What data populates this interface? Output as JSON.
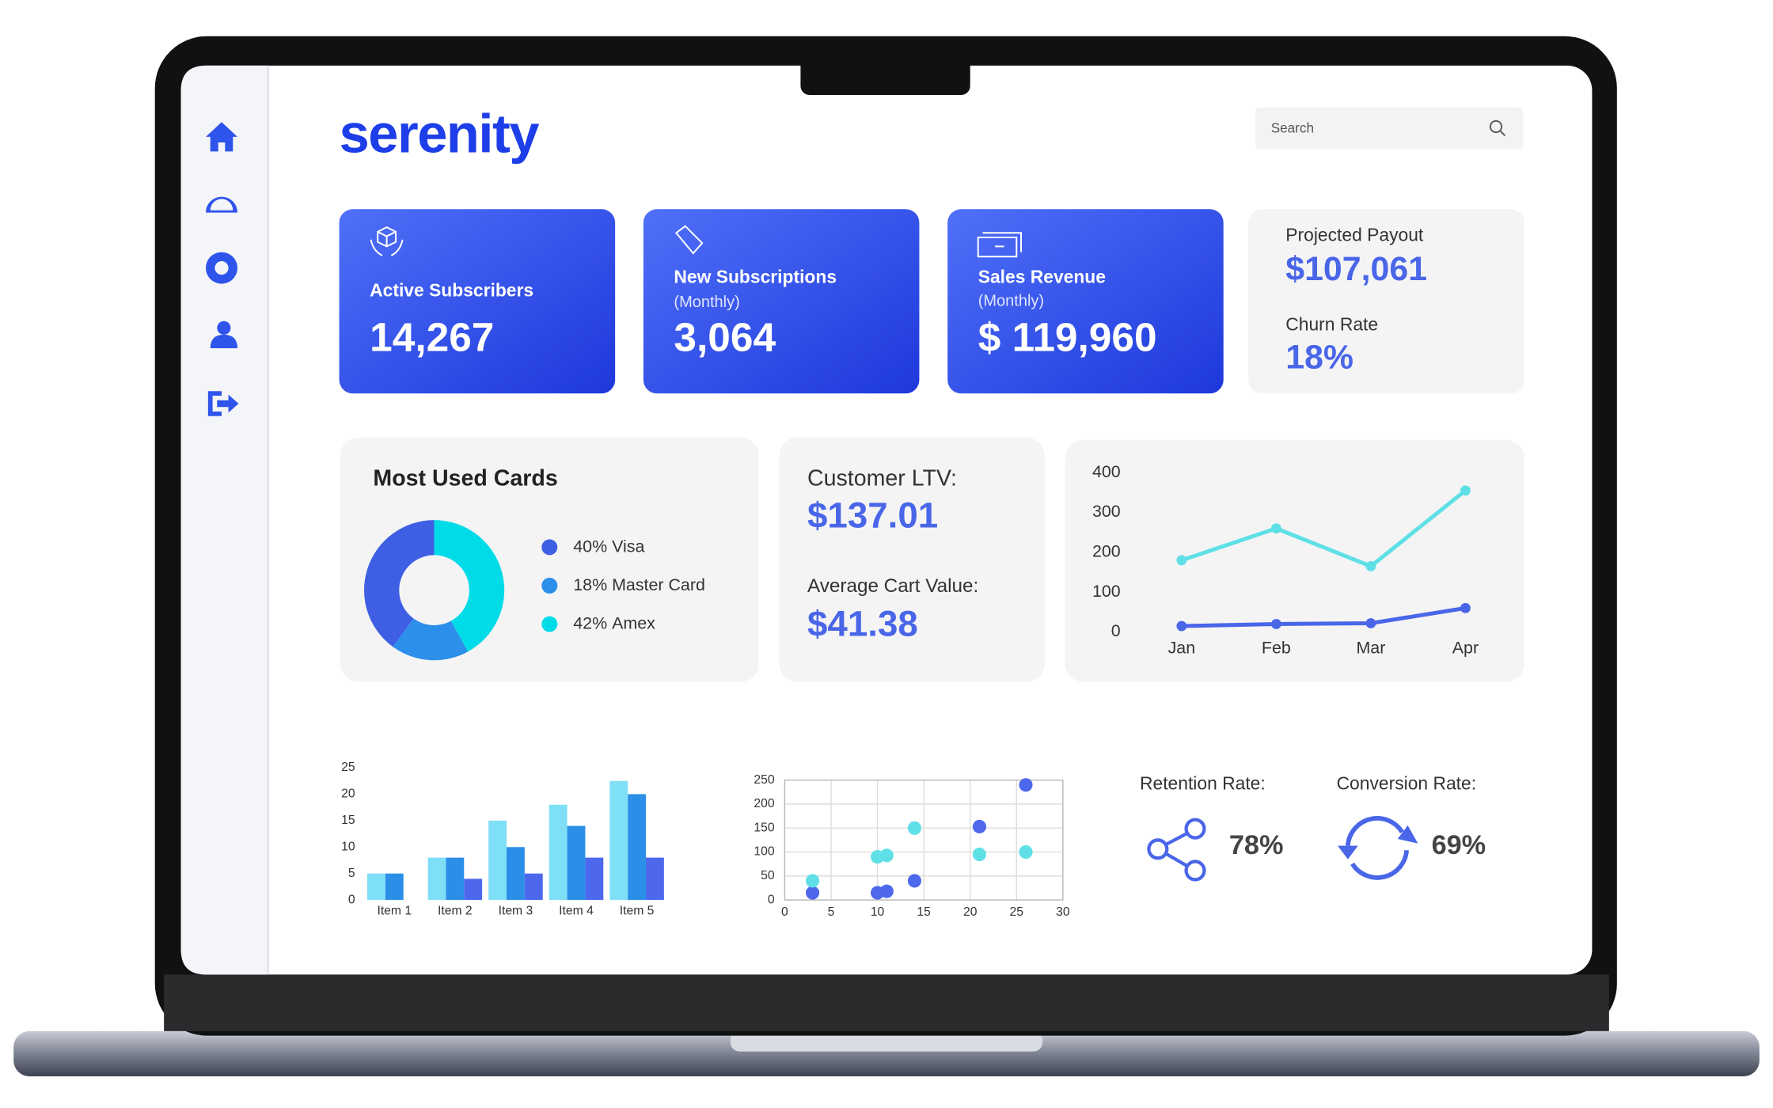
{
  "logo": "serenity",
  "search_placeholder": "Search",
  "kpis": [
    {
      "label": "Active Subscribers",
      "value": "14,267"
    },
    {
      "label": "New Subscriptions",
      "sublabel": "(Monthly)",
      "value": "3,064"
    },
    {
      "label": "Sales Revenue",
      "sublabel": "(Monthly)",
      "value": "$ 119,960"
    }
  ],
  "payout": {
    "label": "Projected Payout",
    "value": "$107,061"
  },
  "churn": {
    "label": "Churn Rate",
    "value": "18%"
  },
  "ltv": {
    "label": "Customer LTV:",
    "value": "$137.01"
  },
  "cart": {
    "label": "Average Cart Value:",
    "value": "$41.38"
  },
  "retention": {
    "label": "Retention Rate:",
    "value": "78%"
  },
  "conversion": {
    "label": "Conversion Rate:",
    "value": "69%"
  },
  "chart_data": [
    {
      "type": "pie",
      "title": "Most Used Cards",
      "categories": [
        "Visa",
        "Master Card",
        "Amex"
      ],
      "values": [
        40,
        18,
        42
      ],
      "value_labels": [
        "40%",
        "18%",
        "42%"
      ],
      "colors": [
        "#3e5fe3",
        "#2c8fe9",
        "#00dbe8"
      ],
      "legend": "right"
    },
    {
      "type": "line",
      "categories": [
        "Jan",
        "Feb",
        "Mar",
        "Apr"
      ],
      "series": [
        {
          "color": "#5fe0e6",
          "values": [
            180,
            260,
            165,
            355
          ]
        },
        {
          "color": "#4a66e8",
          "values": [
            15,
            20,
            22,
            60
          ]
        }
      ],
      "ylim": [
        0,
        400
      ],
      "yticks": [
        0,
        100,
        200,
        300,
        400
      ],
      "grid": false
    },
    {
      "type": "bar",
      "categories": [
        "Item 1",
        "Item 2",
        "Item 3",
        "Item 4",
        "Item 5"
      ],
      "series": [
        {
          "color": "#7fdff7",
          "values": [
            5,
            8,
            15,
            18,
            22.5
          ]
        },
        {
          "color": "#2b8fe8",
          "values": [
            5,
            8,
            10,
            14,
            20
          ]
        },
        {
          "color": "#4d68ec",
          "values": [
            null,
            4,
            5,
            8,
            8
          ]
        }
      ],
      "ylim": [
        0,
        25
      ],
      "yticks": [
        0,
        5,
        10,
        15,
        20,
        25
      ],
      "grid": false
    },
    {
      "type": "scatter",
      "series": [
        {
          "color": "#4d68ec",
          "x": [
            3,
            10,
            11,
            14,
            21,
            26
          ],
          "values": [
            15,
            15,
            18,
            40,
            153,
            240
          ]
        },
        {
          "color": "#5fe0e6",
          "x": [
            3,
            10,
            11,
            14,
            21,
            26
          ],
          "values": [
            40,
            90,
            93,
            150,
            95,
            100
          ]
        }
      ],
      "xlim": [
        0,
        30
      ],
      "xticks": [
        0,
        5,
        10,
        15,
        20,
        25,
        30
      ],
      "ylim": [
        0,
        250
      ],
      "yticks": [
        0,
        50,
        100,
        150,
        200,
        250
      ],
      "grid": true
    }
  ]
}
